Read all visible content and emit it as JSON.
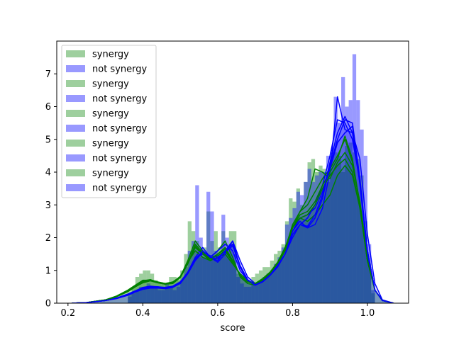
{
  "chart_data": {
    "type": "histogram",
    "xlabel": "score",
    "ylabel": "",
    "xlim": [
      0.17,
      1.11
    ],
    "ylim": [
      0,
      8
    ],
    "xticks": [
      "0.2",
      "0.4",
      "0.6",
      "0.8",
      "1.0"
    ],
    "yticks": [
      "0",
      "1",
      "2",
      "3",
      "4",
      "5",
      "6",
      "7"
    ],
    "grid": false,
    "legend_position": "top-left",
    "colors": {
      "synergy": "#008000",
      "not_synergy": "#0000ff",
      "overlap": "#0d3aa0"
    },
    "legend": [
      {
        "label": "synergy",
        "color": "#008000"
      },
      {
        "label": "not synergy",
        "color": "#0000ff"
      },
      {
        "label": "synergy",
        "color": "#008000"
      },
      {
        "label": "not synergy",
        "color": "#0000ff"
      },
      {
        "label": "synergy",
        "color": "#008000"
      },
      {
        "label": "not synergy",
        "color": "#0000ff"
      },
      {
        "label": "synergy",
        "color": "#008000"
      },
      {
        "label": "not synergy",
        "color": "#0000ff"
      },
      {
        "label": "synergy",
        "color": "#008000"
      },
      {
        "label": "not synergy",
        "color": "#0000ff"
      }
    ],
    "hist_bins": {
      "width": 0.01,
      "x": [
        0.36,
        0.37,
        0.38,
        0.39,
        0.4,
        0.41,
        0.42,
        0.43,
        0.44,
        0.45,
        0.46,
        0.47,
        0.48,
        0.49,
        0.5,
        0.51,
        0.52,
        0.53,
        0.54,
        0.55,
        0.56,
        0.57,
        0.58,
        0.59,
        0.6,
        0.61,
        0.62,
        0.63,
        0.64,
        0.65,
        0.66,
        0.67,
        0.68,
        0.69,
        0.7,
        0.71,
        0.72,
        0.73,
        0.74,
        0.75,
        0.76,
        0.77,
        0.78,
        0.79,
        0.8,
        0.81,
        0.82,
        0.83,
        0.84,
        0.85,
        0.86,
        0.87,
        0.88,
        0.89,
        0.9,
        0.91,
        0.92,
        0.93,
        0.94,
        0.95,
        0.96,
        0.97,
        0.98,
        0.99,
        1.0,
        1.01
      ],
      "synergy": [
        0.3,
        0.5,
        0.8,
        0.9,
        1.0,
        1.0,
        0.9,
        0.7,
        0.6,
        0.6,
        0.6,
        0.8,
        0.8,
        0.7,
        1.0,
        1.5,
        2.5,
        2.2,
        1.9,
        1.4,
        1.7,
        2.8,
        1.9,
        2.2,
        1.7,
        2.2,
        1.6,
        2.2,
        2.2,
        0.9,
        0.8,
        0.7,
        0.6,
        0.8,
        0.9,
        1.0,
        1.1,
        1.1,
        1.3,
        1.5,
        1.6,
        1.8,
        2.5,
        3.2,
        3.1,
        3.5,
        3.0,
        3.7,
        4.3,
        4.4,
        4.0,
        4.2,
        4.1,
        3.7,
        4.5,
        4.6,
        4.5,
        4.0,
        4.8,
        4.9,
        4.6,
        4.4,
        3.9,
        2.5,
        1.2,
        0.3
      ],
      "not_synergy": [
        0.2,
        0.3,
        0.4,
        0.5,
        0.5,
        0.6,
        0.5,
        0.5,
        0.4,
        0.4,
        0.6,
        0.5,
        0.4,
        0.5,
        0.7,
        1.1,
        1.6,
        1.9,
        3.6,
        2.0,
        1.4,
        3.4,
        2.8,
        1.6,
        1.5,
        2.7,
        2.0,
        1.8,
        1.5,
        0.8,
        0.6,
        0.5,
        0.5,
        0.6,
        0.6,
        0.7,
        0.8,
        0.9,
        1.0,
        1.2,
        1.4,
        1.7,
        2.4,
        2.6,
        2.9,
        3.4,
        3.3,
        3.7,
        4.1,
        3.7,
        3.9,
        4.0,
        4.0,
        4.5,
        4.6,
        6.3,
        5.5,
        6.9,
        6.0,
        6.2,
        7.6,
        6.2,
        5.3,
        4.5,
        1.8,
        0.4
      ]
    },
    "kde_curves": {
      "x": [
        0.21,
        0.25,
        0.3,
        0.33,
        0.36,
        0.38,
        0.4,
        0.42,
        0.44,
        0.46,
        0.48,
        0.5,
        0.52,
        0.54,
        0.56,
        0.58,
        0.6,
        0.62,
        0.64,
        0.66,
        0.68,
        0.7,
        0.72,
        0.74,
        0.76,
        0.78,
        0.8,
        0.82,
        0.84,
        0.86,
        0.88,
        0.9,
        0.92,
        0.94,
        0.96,
        0.98,
        1.0,
        1.02,
        1.04,
        1.07
      ],
      "series": [
        {
          "name": "synergy",
          "values": [
            0,
            0.02,
            0.1,
            0.2,
            0.35,
            0.5,
            0.65,
            0.7,
            0.65,
            0.6,
            0.65,
            0.8,
            1.2,
            1.7,
            1.5,
            1.3,
            1.4,
            1.5,
            1.2,
            0.9,
            0.7,
            0.6,
            0.75,
            0.95,
            1.25,
            1.7,
            2.3,
            2.6,
            2.5,
            2.7,
            3.0,
            3.3,
            3.9,
            4.2,
            3.9,
            2.9,
            1.3,
            0.4,
            0.08,
            0
          ]
        },
        {
          "name": "not synergy",
          "values": [
            0,
            0.02,
            0.08,
            0.15,
            0.25,
            0.35,
            0.45,
            0.5,
            0.5,
            0.45,
            0.5,
            0.6,
            0.9,
            1.3,
            1.6,
            1.4,
            1.3,
            1.6,
            1.9,
            1.3,
            0.8,
            0.6,
            0.7,
            0.9,
            1.2,
            1.6,
            2.2,
            2.5,
            2.3,
            2.4,
            2.9,
            4.0,
            6.3,
            5.3,
            5.2,
            4.4,
            2.1,
            0.6,
            0.1,
            0
          ]
        },
        {
          "name": "synergy",
          "values": [
            0,
            0.02,
            0.1,
            0.22,
            0.4,
            0.55,
            0.7,
            0.7,
            0.62,
            0.58,
            0.62,
            0.8,
            1.3,
            1.9,
            1.6,
            1.4,
            1.6,
            1.9,
            1.4,
            0.8,
            0.6,
            0.55,
            0.7,
            0.9,
            1.2,
            1.6,
            2.3,
            2.8,
            3.0,
            3.4,
            3.8,
            4.1,
            4.5,
            5.0,
            4.3,
            3.0,
            1.3,
            0.4,
            0.08,
            0
          ]
        },
        {
          "name": "not synergy",
          "values": [
            0,
            0.02,
            0.08,
            0.16,
            0.28,
            0.38,
            0.48,
            0.52,
            0.5,
            0.48,
            0.52,
            0.65,
            0.95,
            1.4,
            1.7,
            1.4,
            1.25,
            1.5,
            1.9,
            1.1,
            0.7,
            0.55,
            0.65,
            0.85,
            1.15,
            1.5,
            2.0,
            2.4,
            2.6,
            3.0,
            3.6,
            4.5,
            5.6,
            5.5,
            5.0,
            3.7,
            1.6,
            0.4,
            0.08,
            0
          ]
        },
        {
          "name": "synergy",
          "values": [
            0,
            0.02,
            0.1,
            0.2,
            0.38,
            0.52,
            0.68,
            0.72,
            0.64,
            0.6,
            0.64,
            0.82,
            1.25,
            1.6,
            1.4,
            1.3,
            1.5,
            1.7,
            1.3,
            0.85,
            0.65,
            0.6,
            0.72,
            0.92,
            1.2,
            1.65,
            2.4,
            2.8,
            3.2,
            4.1,
            4.0,
            3.8,
            4.3,
            4.6,
            4.2,
            3.1,
            1.4,
            0.4,
            0.08,
            0
          ]
        },
        {
          "name": "not synergy",
          "values": [
            0,
            0.02,
            0.08,
            0.14,
            0.24,
            0.34,
            0.42,
            0.46,
            0.46,
            0.44,
            0.48,
            0.6,
            0.9,
            1.35,
            1.5,
            1.4,
            1.6,
            1.8,
            1.6,
            1.0,
            0.7,
            0.55,
            0.65,
            0.85,
            1.1,
            1.5,
            2.2,
            2.6,
            2.7,
            2.9,
            3.4,
            4.1,
            4.9,
            5.2,
            5.4,
            3.6,
            1.5,
            0.4,
            0.08,
            0
          ]
        },
        {
          "name": "synergy",
          "values": [
            0,
            0.02,
            0.1,
            0.2,
            0.36,
            0.5,
            0.62,
            0.68,
            0.62,
            0.58,
            0.6,
            0.78,
            1.2,
            1.75,
            1.5,
            1.35,
            1.45,
            1.6,
            1.25,
            0.85,
            0.65,
            0.58,
            0.7,
            0.9,
            1.2,
            1.6,
            2.3,
            2.7,
            2.8,
            3.1,
            3.6,
            4.0,
            4.4,
            5.1,
            4.4,
            3.0,
            1.3,
            0.4,
            0.08,
            0
          ]
        },
        {
          "name": "not synergy",
          "values": [
            0,
            0.02,
            0.08,
            0.15,
            0.26,
            0.36,
            0.44,
            0.48,
            0.48,
            0.46,
            0.5,
            0.62,
            0.9,
            1.3,
            1.55,
            1.45,
            1.4,
            1.55,
            1.75,
            1.1,
            0.7,
            0.55,
            0.66,
            0.86,
            1.15,
            1.5,
            2.1,
            2.4,
            2.3,
            2.6,
            3.2,
            4.2,
            5.0,
            5.6,
            5.5,
            3.8,
            1.6,
            0.4,
            0.08,
            0
          ]
        },
        {
          "name": "synergy",
          "values": [
            0,
            0.02,
            0.1,
            0.2,
            0.36,
            0.5,
            0.64,
            0.7,
            0.63,
            0.58,
            0.62,
            0.8,
            1.2,
            1.8,
            1.55,
            1.35,
            1.5,
            1.65,
            1.3,
            0.85,
            0.65,
            0.6,
            0.72,
            0.92,
            1.2,
            1.65,
            2.35,
            2.6,
            2.7,
            3.0,
            3.5,
            3.9,
            4.2,
            4.4,
            4.0,
            2.9,
            1.3,
            0.4,
            0.08,
            0
          ]
        },
        {
          "name": "not synergy",
          "values": [
            0,
            0.02,
            0.08,
            0.15,
            0.25,
            0.35,
            0.44,
            0.48,
            0.48,
            0.46,
            0.5,
            0.62,
            0.92,
            1.35,
            1.6,
            1.4,
            1.35,
            1.6,
            1.8,
            1.15,
            0.72,
            0.56,
            0.66,
            0.86,
            1.15,
            1.5,
            2.1,
            2.4,
            2.35,
            2.7,
            3.3,
            4.3,
            5.2,
            5.7,
            5.2,
            3.7,
            1.6,
            0.4,
            0.08,
            0
          ]
        }
      ]
    }
  }
}
